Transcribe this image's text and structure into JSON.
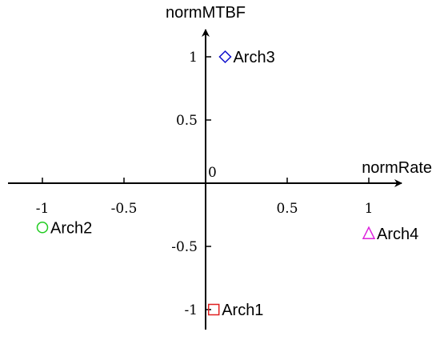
{
  "chart_data": {
    "type": "scatter",
    "xlabel": "normRate",
    "ylabel": "normMTBF",
    "origin_label": "0",
    "xlim": [
      -1.2,
      1.2
    ],
    "ylim": [
      -1.07,
      1.2
    ],
    "x_ticks": [
      {
        "value": -1,
        "label": "-1"
      },
      {
        "value": -0.5,
        "label": "-0.5"
      },
      {
        "value": 0.5,
        "label": "0.5"
      },
      {
        "value": 1,
        "label": "1"
      }
    ],
    "y_ticks": [
      {
        "value": 1,
        "label": "1"
      },
      {
        "value": 0.5,
        "label": "0.5"
      },
      {
        "value": -0.5,
        "label": "-0.5"
      },
      {
        "value": -1,
        "label": "-1"
      }
    ],
    "grid": false,
    "points": [
      {
        "name": "Arch1",
        "x": 0.05,
        "y": -1.0,
        "marker": "square",
        "color": "#e02020"
      },
      {
        "name": "Arch2",
        "x": -1.0,
        "y": -0.35,
        "marker": "circle",
        "color": "#22cc22"
      },
      {
        "name": "Arch3",
        "x": 0.12,
        "y": 1.0,
        "marker": "diamond",
        "color": "#1010cc"
      },
      {
        "name": "Arch4",
        "x": 1.0,
        "y": -0.4,
        "marker": "triangle",
        "color": "#dd22dd"
      }
    ]
  }
}
